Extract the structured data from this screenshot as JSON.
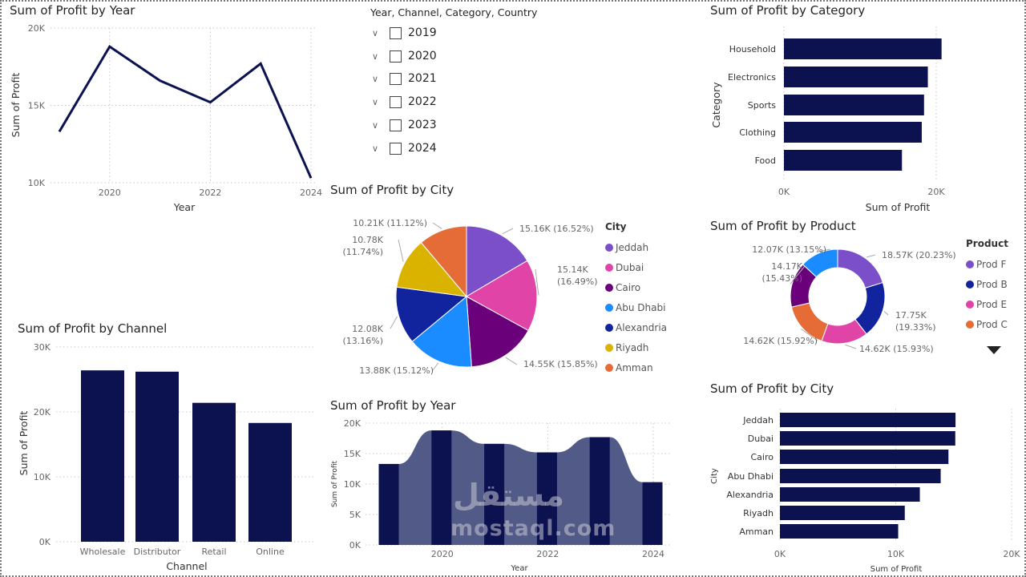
{
  "colors": {
    "bar": "#0c1250",
    "area": "#525a87",
    "grid": "#c8c8c8",
    "axis_text": "#666666"
  },
  "slicer": {
    "title": "Year, Channel, Category, Country",
    "items": [
      {
        "label": "2019",
        "checked": false
      },
      {
        "label": "2020",
        "checked": false
      },
      {
        "label": "2021",
        "checked": false
      },
      {
        "label": "2022",
        "checked": false
      },
      {
        "label": "2023",
        "checked": false
      },
      {
        "label": "2024",
        "checked": false
      }
    ],
    "expand_icon": "chevron-down-icon"
  },
  "watermark": {
    "latin": "mostaql.com",
    "arabic": "مستقل"
  },
  "more_icon": "triangle-down-icon",
  "chart_data": [
    {
      "id": "year_line",
      "type": "line",
      "title": "Sum of Profit by Year",
      "xlabel": "Year",
      "ylabel": "Sum of Profit",
      "x": [
        2019,
        2020,
        2021,
        2022,
        2023,
        2024
      ],
      "values": [
        13300,
        18800,
        16600,
        15200,
        17700,
        10300
      ],
      "ylim": [
        10000,
        20000
      ],
      "yticks": [
        "10K",
        "15K",
        "20K"
      ],
      "xticks": [
        "2020",
        "2022",
        "2024"
      ],
      "grid": true
    },
    {
      "id": "city_pie",
      "type": "pie",
      "title": "Sum of Profit by City",
      "legend_title": "City",
      "legend": "right",
      "categories": [
        "Jeddah",
        "Dubai",
        "Cairo",
        "Abu Dhabi",
        "Alexandria",
        "Riyadh",
        "Amman"
      ],
      "values": [
        15160,
        15140,
        14550,
        13880,
        12080,
        10780,
        10210
      ],
      "labels": [
        "15.16K (16.52%)",
        "15.14K (16.49%)",
        "14.55K (15.85%)",
        "13.88K (15.12%)",
        "12.08K (13.16%)",
        "10.78K (11.74%)",
        "10.21K (11.12%)"
      ],
      "colors": [
        "#7b4fc9",
        "#e044a7",
        "#6b007b",
        "#1a8cff",
        "#12239e",
        "#d9b300",
        "#e66c37"
      ]
    },
    {
      "id": "channel_bar",
      "type": "bar",
      "title": "Sum of Profit by Channel",
      "xlabel": "Channel",
      "ylabel": "Sum of Profit",
      "categories": [
        "Wholesale",
        "Distributor",
        "Retail",
        "Online"
      ],
      "values": [
        26400,
        26200,
        21400,
        18300
      ],
      "ylim": [
        0,
        30000
      ],
      "yticks": [
        "0K",
        "10K",
        "20K",
        "30K"
      ],
      "grid": true
    },
    {
      "id": "year_ribbon",
      "type": "bar",
      "title": "Sum of Profit by Year",
      "xlabel": "Year",
      "ylabel": "Sum of Profit",
      "x": [
        2019,
        2020,
        2021,
        2022,
        2023,
        2024
      ],
      "values": [
        13300,
        18800,
        16600,
        15200,
        17700,
        10300
      ],
      "ylim": [
        0,
        20000
      ],
      "yticks": [
        "0K",
        "5K",
        "10K",
        "15K",
        "20K"
      ],
      "xticks": [
        "2020",
        "2022",
        "2024"
      ],
      "grid": true
    },
    {
      "id": "category_bar",
      "type": "bar",
      "orientation": "horizontal",
      "title": "Sum of Profit by Category",
      "xlabel": "Sum of Profit",
      "ylabel": "Category",
      "categories": [
        "Household",
        "Electronics",
        "Sports",
        "Clothing",
        "Food"
      ],
      "values": [
        20700,
        18900,
        18400,
        18100,
        15500
      ],
      "xlim": [
        0,
        20000
      ],
      "xticks": [
        "0K",
        "20K"
      ],
      "grid": true
    },
    {
      "id": "product_donut",
      "type": "pie",
      "donut": true,
      "title": "Sum of Profit by Product",
      "legend_title": "Product",
      "legend": "right",
      "legend_items": [
        "Prod F",
        "Prod B",
        "Prod E",
        "Prod C"
      ],
      "values": [
        18570,
        17750,
        14620,
        14620,
        14170,
        12070
      ],
      "labels": [
        "18.57K (20.23%)",
        "17.75K (19.33%)",
        "14.62K (15.93%)",
        "14.62K (15.92%)",
        "14.17K (15.43%)",
        "12.07K (13.15%)"
      ],
      "colors": [
        "#7b4fc9",
        "#12239e",
        "#e044a7",
        "#e66c37",
        "#6b007b",
        "#1a8cff"
      ]
    },
    {
      "id": "city_bar",
      "type": "bar",
      "orientation": "horizontal",
      "title": "Sum of Profit by City",
      "xlabel": "Sum of Profit",
      "ylabel": "City",
      "categories": [
        "Jeddah",
        "Dubai",
        "Cairo",
        "Abu Dhabi",
        "Alexandria",
        "Riyadh",
        "Amman"
      ],
      "values": [
        15160,
        15140,
        14550,
        13880,
        12080,
        10780,
        10210
      ],
      "xlim": [
        0,
        20000
      ],
      "xticks": [
        "0K",
        "10K",
        "20K"
      ],
      "grid": true
    }
  ]
}
